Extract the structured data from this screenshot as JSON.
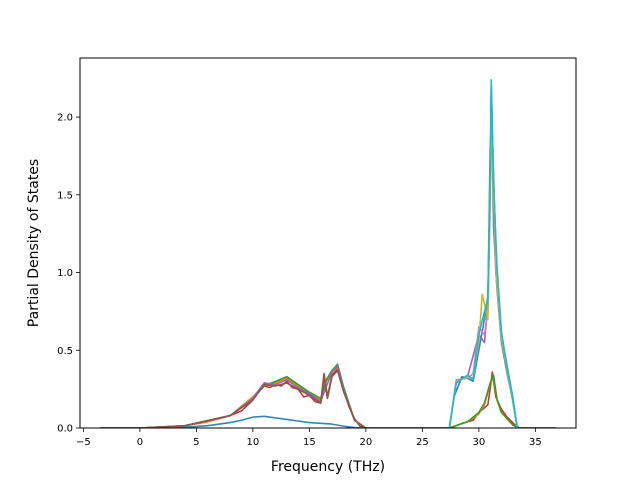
{
  "chart_data": {
    "type": "line",
    "title": "",
    "xlabel": "Frequency (THz)",
    "ylabel": "Partial Density of States",
    "xlim": [
      -5.3,
      38.6
    ],
    "ylim": [
      0.0,
      2.38
    ],
    "xticks": [
      -5,
      0,
      5,
      10,
      15,
      20,
      25,
      30,
      35
    ],
    "yticks": [
      0.0,
      0.5,
      1.0,
      1.5,
      2.0
    ],
    "xtick_labels": [
      "−5",
      "0",
      "5",
      "10",
      "15",
      "20",
      "25",
      "30",
      "35"
    ],
    "ytick_labels": [
      "0.0",
      "0.5",
      "1.0",
      "1.5",
      "2.0"
    ],
    "grid": false,
    "legend": "none",
    "series": [
      {
        "color": "#c0392b",
        "x": [
          -3.5,
          0,
          2,
          4,
          6,
          8,
          9,
          10,
          10.5,
          11,
          11.5,
          12,
          12.5,
          13,
          13.5,
          14,
          14.5,
          15,
          15.5,
          16,
          16.3,
          16.6,
          17,
          17.5,
          18,
          18.5,
          19,
          19.5,
          20,
          27.4,
          27.8,
          28.5,
          29.5,
          30,
          30.5,
          30.8,
          31,
          31.2,
          31.5,
          32,
          32.5,
          33.2,
          33.6,
          36.8
        ],
        "y": [
          0,
          0,
          0.004,
          0.015,
          0.04,
          0.08,
          0.11,
          0.18,
          0.24,
          0.27,
          0.26,
          0.28,
          0.27,
          0.3,
          0.26,
          0.25,
          0.2,
          0.21,
          0.17,
          0.16,
          0.35,
          0.2,
          0.34,
          0.38,
          0.25,
          0.14,
          0.06,
          0.01,
          0,
          0,
          0.01,
          0.03,
          0.05,
          0.1,
          0.13,
          0.15,
          0.25,
          0.36,
          0.2,
          0.12,
          0.07,
          0.02,
          0,
          0
        ]
      },
      {
        "color": "#2e86c1",
        "x": [
          -3.5,
          0,
          2,
          4,
          6,
          8,
          9,
          10,
          11,
          12,
          13,
          14,
          15,
          16,
          17,
          18,
          19,
          20,
          27.4,
          27.8,
          28.5,
          29,
          29.5,
          30,
          30.5,
          30.8,
          31,
          31.1,
          31.3,
          31.6,
          32,
          32.5,
          33,
          33.4,
          36.8
        ],
        "y": [
          0,
          0,
          0.001,
          0.005,
          0.015,
          0.035,
          0.05,
          0.07,
          0.075,
          0.065,
          0.055,
          0.045,
          0.035,
          0.03,
          0.025,
          0.012,
          0.003,
          0,
          0,
          0.2,
          0.33,
          0.32,
          0.3,
          0.5,
          0.7,
          0.85,
          1.55,
          2.2,
          1.6,
          1.0,
          0.6,
          0.4,
          0.2,
          0,
          0
        ]
      },
      {
        "color": "#ff7f0e",
        "x": [
          -3.5,
          0,
          2,
          4,
          6,
          8,
          10,
          11,
          12,
          13,
          14,
          15,
          16,
          16.5,
          17,
          17.5,
          18,
          19,
          20,
          27.4,
          28,
          29,
          30,
          30.5,
          31,
          31.3,
          31.6,
          32,
          33,
          33.5,
          36.8
        ],
        "y": [
          0,
          0,
          0.004,
          0.015,
          0.04,
          0.08,
          0.2,
          0.28,
          0.29,
          0.32,
          0.27,
          0.22,
          0.18,
          0.3,
          0.36,
          0.39,
          0.26,
          0.05,
          0,
          0,
          0.015,
          0.04,
          0.09,
          0.15,
          0.28,
          0.33,
          0.18,
          0.1,
          0.02,
          0,
          0
        ]
      },
      {
        "color": "#2ca02c",
        "x": [
          -3.5,
          0,
          4,
          8,
          10,
          11,
          12,
          13,
          14,
          15,
          16,
          16.5,
          17,
          17.5,
          18,
          19,
          20,
          27.4,
          28,
          29,
          30,
          30.5,
          31,
          31.3,
          31.6,
          32,
          33,
          33.5,
          36.8
        ],
        "y": [
          0,
          0,
          0.015,
          0.08,
          0.19,
          0.27,
          0.3,
          0.33,
          0.28,
          0.23,
          0.19,
          0.31,
          0.37,
          0.41,
          0.27,
          0.05,
          0,
          0,
          0.015,
          0.04,
          0.1,
          0.16,
          0.29,
          0.34,
          0.19,
          0.1,
          0.02,
          0,
          0
        ]
      },
      {
        "color": "#9467bd",
        "x": [
          -3.5,
          0,
          4,
          8,
          10,
          11,
          12,
          13,
          14,
          15,
          16,
          17,
          17.5,
          18,
          19,
          20,
          27.4,
          28,
          29,
          30,
          30.5,
          30.8,
          31,
          31.15,
          31.3,
          31.6,
          32,
          32.5,
          33,
          33.4,
          36.8
        ],
        "y": [
          0,
          0,
          0.014,
          0.08,
          0.19,
          0.29,
          0.28,
          0.31,
          0.26,
          0.22,
          0.17,
          0.36,
          0.4,
          0.25,
          0.05,
          0,
          0,
          0.3,
          0.33,
          0.6,
          0.55,
          0.8,
          1.8,
          2.0,
          1.3,
          0.9,
          0.55,
          0.35,
          0.18,
          0,
          0
        ]
      },
      {
        "color": "#e377c2",
        "x": [
          27.4,
          28,
          29,
          29.5,
          30,
          30.5,
          30.8,
          31,
          31.1,
          31.25,
          31.5,
          32,
          32.5,
          33,
          33.4
        ],
        "y": [
          0,
          0.31,
          0.32,
          0.35,
          0.65,
          0.6,
          0.75,
          1.5,
          2.2,
          1.7,
          1.0,
          0.6,
          0.38,
          0.18,
          0
        ]
      },
      {
        "color": "#bcbd22",
        "x": [
          27.4,
          28,
          29,
          29.5,
          30,
          30.3,
          30.8,
          31,
          31.15,
          31.3,
          31.6,
          32,
          32.5,
          33,
          33.4
        ],
        "y": [
          0,
          0.3,
          0.33,
          0.32,
          0.55,
          0.86,
          0.7,
          1.4,
          2.1,
          1.5,
          0.95,
          0.58,
          0.37,
          0.17,
          0
        ]
      },
      {
        "color": "#17becf",
        "x": [
          27.4,
          28,
          29,
          29.5,
          30,
          30.5,
          30.8,
          31,
          31.1,
          31.2,
          31.4,
          31.6,
          32,
          32.5,
          33,
          33.4
        ],
        "y": [
          0,
          0.29,
          0.34,
          0.31,
          0.6,
          0.75,
          0.82,
          1.6,
          2.24,
          1.9,
          1.4,
          1.05,
          0.62,
          0.39,
          0.19,
          0
        ]
      },
      {
        "color": "#8c564b",
        "x": [
          -3.5,
          0,
          4,
          8,
          10,
          11,
          12,
          13,
          14,
          15,
          16,
          16.3,
          16.6,
          17,
          17.5,
          18,
          19,
          20
        ],
        "y": [
          0,
          0,
          0.015,
          0.08,
          0.18,
          0.28,
          0.27,
          0.29,
          0.25,
          0.21,
          0.16,
          0.33,
          0.19,
          0.33,
          0.37,
          0.24,
          0.05,
          0
        ]
      }
    ]
  }
}
